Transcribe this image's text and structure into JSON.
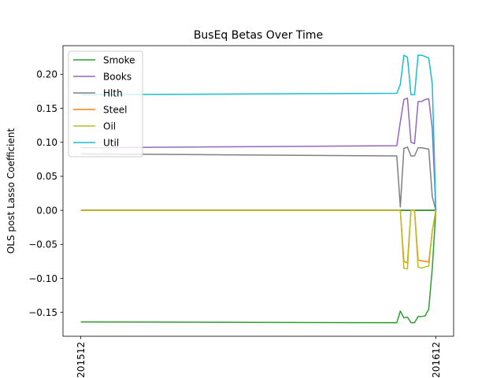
{
  "chart_data": {
    "type": "line",
    "title": "BusEq Betas Over Time",
    "xlabel": "",
    "ylabel": "OLS post Lasso Coefficient",
    "x_ticks": [
      "201512",
      "201612"
    ],
    "ylim": [
      -0.185,
      0.242
    ],
    "y_ticks": [
      -0.15,
      -0.1,
      -0.05,
      0.0,
      0.05,
      0.1,
      0.15,
      0.2
    ],
    "y_tick_labels": [
      "−0.15",
      "−0.10",
      "−0.05",
      "0.00",
      "0.05",
      "0.10",
      "0.15",
      "0.20"
    ],
    "xlim": [
      -0.05,
      1.05
    ],
    "grid": false,
    "legend_position": "upper left",
    "x": [
      0.0,
      0.89,
      0.9,
      0.91,
      0.92,
      0.93,
      0.94,
      0.95,
      0.96,
      0.97,
      0.98,
      0.99,
      1.0
    ],
    "series": [
      {
        "name": "Smoke",
        "color": "#2ca02c",
        "values": [
          -0.164,
          -0.165,
          -0.148,
          -0.158,
          -0.157,
          -0.165,
          -0.165,
          -0.156,
          -0.156,
          -0.155,
          -0.145,
          -0.085,
          0.0
        ]
      },
      {
        "name": "Books",
        "color": "#9467bd",
        "values": [
          0.092,
          0.095,
          0.13,
          0.163,
          0.165,
          0.1,
          0.098,
          0.16,
          0.16,
          0.163,
          0.164,
          0.12,
          0.0
        ]
      },
      {
        "name": "Hlth",
        "color": "#7f7f7f",
        "values": [
          0.083,
          0.08,
          0.005,
          0.091,
          0.093,
          0.08,
          0.08,
          0.092,
          0.092,
          0.091,
          0.09,
          0.02,
          0.0
        ]
      },
      {
        "name": "Steel",
        "color": "#ff7f0e",
        "values": [
          0.0,
          0.0,
          0.0,
          -0.075,
          -0.077,
          0.0,
          0.0,
          -0.073,
          -0.074,
          -0.075,
          -0.076,
          -0.03,
          0.0
        ]
      },
      {
        "name": "Oil",
        "color": "#bcbd22",
        "values": [
          0.0,
          0.0,
          0.0,
          -0.085,
          -0.086,
          0.0,
          0.0,
          -0.083,
          -0.085,
          -0.083,
          -0.082,
          -0.03,
          0.0
        ]
      },
      {
        "name": "Util",
        "color": "#17becf",
        "values": [
          0.17,
          0.172,
          0.185,
          0.228,
          0.225,
          0.17,
          0.17,
          0.228,
          0.228,
          0.226,
          0.224,
          0.185,
          0.0
        ]
      }
    ],
    "flat_series_colors": [
      "#1f77b4",
      "#d62728",
      "#8c564b",
      "#e377c2",
      "#7f7f7f",
      "#2ca02c"
    ]
  }
}
